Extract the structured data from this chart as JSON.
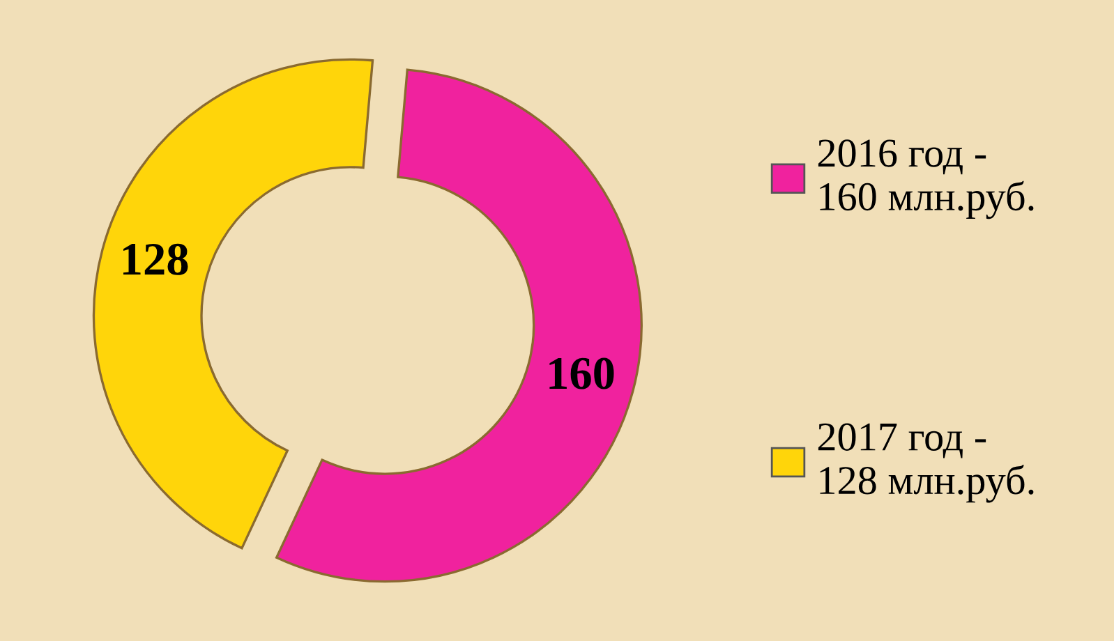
{
  "chart_data": {
    "type": "donut",
    "categories": [
      "2016 год -\n160 млн.руб.",
      "2017 год -\n128 млн.руб."
    ],
    "values": [
      160,
      128
    ],
    "colors": [
      "#f0229e",
      "#ffd50a"
    ],
    "data_labels": true,
    "legend": "right"
  }
}
